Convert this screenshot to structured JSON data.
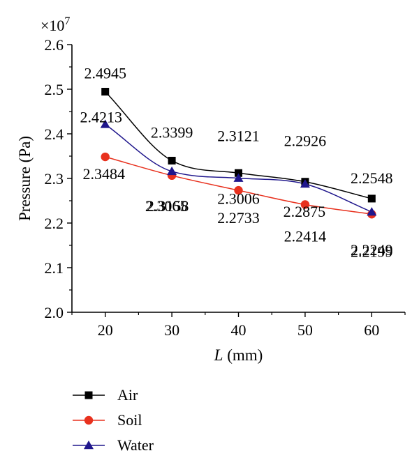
{
  "chart_data": {
    "type": "line",
    "x": [
      20,
      30,
      40,
      50,
      60
    ],
    "xlabel": "L (mm)",
    "xlabel_var": "L",
    "xlabel_unit": " (mm)",
    "ylabel": "Pressure (Pa)",
    "y_multiplier": "×10",
    "y_multiplier_exp": "7",
    "xlim": [
      15,
      65
    ],
    "ylim": [
      2.0,
      2.6
    ],
    "xticks": [
      "20",
      "30",
      "40",
      "50",
      "60"
    ],
    "yticks": [
      "2.0",
      "2.1",
      "2.2",
      "2.3",
      "2.4",
      "2.5",
      "2.6"
    ],
    "grid": false,
    "legend_position": "bottom-left",
    "series": [
      {
        "name": "Air",
        "color": "#000000",
        "marker": "square",
        "values": [
          2.4945,
          2.3399,
          2.3121,
          2.2926,
          2.2548
        ],
        "labels": [
          "2.4945",
          "2.3399",
          "2.3121",
          "2.2926",
          "2.2548"
        ]
      },
      {
        "name": "Soil",
        "color": "#e8311e",
        "marker": "circle",
        "values": [
          2.3484,
          2.3065,
          2.2733,
          2.2414,
          2.2199
        ],
        "labels": [
          "2.3484",
          "2.3065",
          "2.2733",
          "2.2414",
          "2.2199"
        ]
      },
      {
        "name": "Water",
        "color": "#1f168c",
        "marker": "triangle",
        "values": [
          2.4213,
          2.3158,
          2.3006,
          2.2875,
          2.2249
        ],
        "labels": [
          "2.4213",
          "2.3158",
          "2.3006",
          "2.2875",
          "2.2249"
        ]
      }
    ]
  }
}
